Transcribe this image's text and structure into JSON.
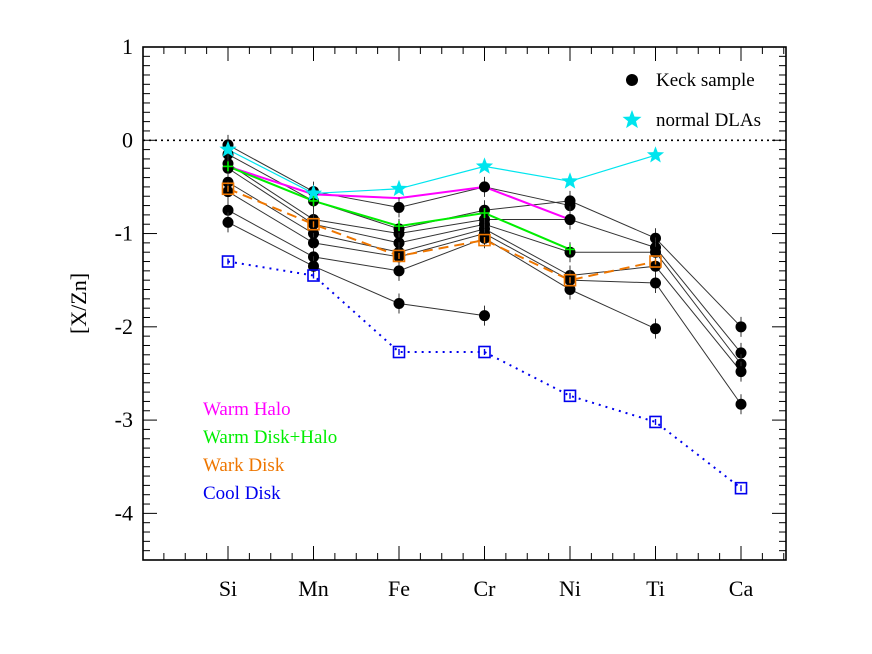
{
  "chart_data": {
    "type": "line",
    "title": "",
    "xlabel": "",
    "ylabel": "[X/Zn]",
    "categories": [
      "Si",
      "Mn",
      "Fe",
      "Cr",
      "Ni",
      "Ti",
      "Ca"
    ],
    "ylim": [
      -4.5,
      1
    ],
    "yticks": [
      1,
      0,
      -1,
      -2,
      -3,
      -4
    ],
    "ytick_labels": [
      "1",
      "0",
      "-1",
      "-2",
      "-3",
      "-4"
    ],
    "reference_line": {
      "y": 0,
      "style": "dotted"
    },
    "legend": {
      "placement": "top-right",
      "entries": [
        {
          "label": "Keck sample",
          "marker": "filled-circle",
          "color": "#000000"
        },
        {
          "label": "normal DLAs",
          "marker": "star",
          "color": "#00e5ee"
        }
      ]
    },
    "keck_sample": [
      {
        "name": "",
        "values": [
          -0.05,
          -0.55,
          -0.72,
          -0.5,
          -0.7,
          null,
          null
        ]
      },
      {
        "name": "",
        "values": [
          -0.15,
          -0.65,
          -0.95,
          -0.75,
          -0.65,
          -1.05,
          -2.0
        ]
      },
      {
        "name": "",
        "values": [
          -0.25,
          -0.85,
          -1.0,
          -0.85,
          -0.85,
          -1.15,
          -2.28
        ]
      },
      {
        "name": "",
        "values": [
          -0.3,
          -0.9,
          -1.1,
          -0.9,
          -1.2,
          -1.2,
          -2.4
        ]
      },
      {
        "name": "",
        "values": [
          -0.45,
          -1.0,
          -1.2,
          -0.95,
          -1.45,
          -1.35,
          -2.48
        ]
      },
      {
        "name": "",
        "values": [
          -0.55,
          -1.1,
          -1.25,
          -1.0,
          -1.5,
          -1.53,
          -2.83
        ]
      },
      {
        "name": "",
        "values": [
          -0.75,
          -1.25,
          -1.4,
          -1.05,
          -1.6,
          -2.02,
          null
        ]
      },
      {
        "name": "",
        "values": [
          -0.88,
          -1.35,
          -1.75,
          -1.88,
          null,
          null,
          null
        ]
      }
    ],
    "series": [
      {
        "name": "normal DLAs",
        "color": "#00e5ee",
        "marker": "star",
        "style": "solid",
        "values": [
          -0.1,
          -0.57,
          -0.52,
          -0.28,
          -0.44,
          -0.16,
          null
        ]
      },
      {
        "name": "Warm Halo",
        "color": "#ff00ff",
        "marker": "none",
        "style": "solid",
        "values": [
          -0.28,
          -0.58,
          -0.62,
          -0.5,
          -0.85,
          null,
          null
        ]
      },
      {
        "name": "Warm Disk+Halo",
        "color": "#00ee00",
        "marker": "plus",
        "style": "solid",
        "values": [
          -0.28,
          -0.65,
          -0.92,
          -0.78,
          -1.17,
          null,
          null
        ]
      },
      {
        "name": "Wark Disk",
        "color": "#ee7600",
        "marker": "open-square",
        "style": "dashed",
        "values": [
          -0.52,
          -0.9,
          -1.24,
          -1.07,
          -1.5,
          -1.3,
          null
        ]
      },
      {
        "name": "Cool Disk",
        "color": "#0000ee",
        "marker": "open-square",
        "style": "dotted",
        "values": [
          -1.3,
          -1.45,
          -2.27,
          -2.27,
          -2.74,
          -3.02,
          -3.73
        ]
      }
    ],
    "model_legend": {
      "placement": "bottom-left",
      "entries": [
        "Warm Halo",
        "Warm Disk+Halo",
        "Wark Disk",
        "Cool Disk"
      ]
    },
    "grid": false
  }
}
